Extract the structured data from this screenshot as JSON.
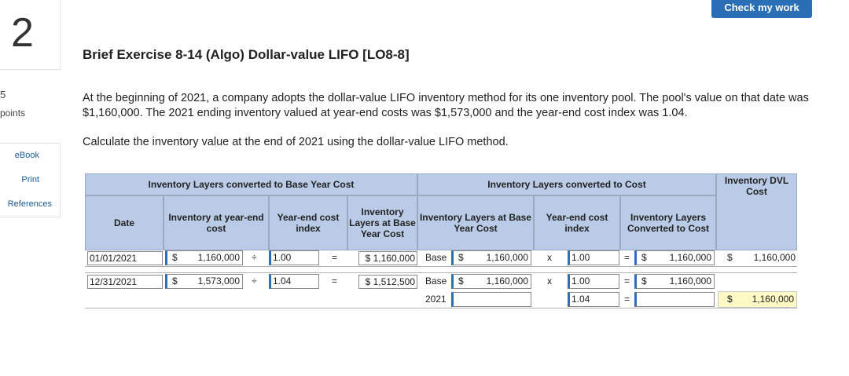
{
  "question": {
    "number": "2",
    "points_value": "5",
    "points_label": "points"
  },
  "side_links": [
    "eBook",
    "Print",
    "References"
  ],
  "check_button": "Check my work",
  "title": "Brief Exercise 8-14 (Algo) Dollar-value LIFO [LO8-8]",
  "paragraph1": "At the beginning of 2021, a company adopts the dollar-value LIFO inventory method for its one inventory pool. The pool's value on that date was $1,160,000. The 2021 ending inventory valued at year-end costs was $1,573,000 and the year-end cost index was 1.04.",
  "paragraph2": "Calculate the inventory value at the end of 2021 using the dollar-value LIFO method.",
  "table": {
    "group_headers": {
      "base": "Inventory Layers converted to Base Year Cost",
      "cost": "Inventory Layers converted to Cost",
      "dvl": "Inventory DVL Cost"
    },
    "col_headers": {
      "date": "Date",
      "inv_yearend": "Inventory at year-end cost",
      "index": "Year-end cost index",
      "layers_base": "Inventory Layers at Base Year Cost",
      "layers_base2": "Inventory Layers at Base Year Cost",
      "index2": "Year-end cost index",
      "converted": "Inventory Layers Converted to Cost"
    },
    "rows": [
      {
        "date": "01/01/2021",
        "cur": "$",
        "yearend": "1,160,000",
        "div": "÷",
        "index": "1.00",
        "eq": "=",
        "base_cost": "$ 1,160,000",
        "layer_label": "Base",
        "cur2": "$",
        "layer_val": "1,160,000",
        "mult": "x",
        "index2": "1.00",
        "eq2": "=",
        "cur3": "$",
        "converted": "1,160,000",
        "cur4": "$",
        "dvl": "1,160,000"
      },
      {
        "date": "12/31/2021",
        "cur": "$",
        "yearend": "1,573,000",
        "div": "÷",
        "index": "1.04",
        "eq": "=",
        "base_cost": "$ 1,512,500",
        "layer_label": "Base",
        "cur2": "$",
        "layer_val": "1,160,000",
        "mult": "x",
        "index2": "1.00",
        "eq2": "=",
        "cur3": "$",
        "converted": "1,160,000"
      },
      {
        "layer_label": "2021",
        "layer_val": "",
        "mult": "",
        "index2": "1.04",
        "eq2": "=",
        "converted": "",
        "cur4": "$",
        "dvl": "1,160,000"
      }
    ]
  }
}
